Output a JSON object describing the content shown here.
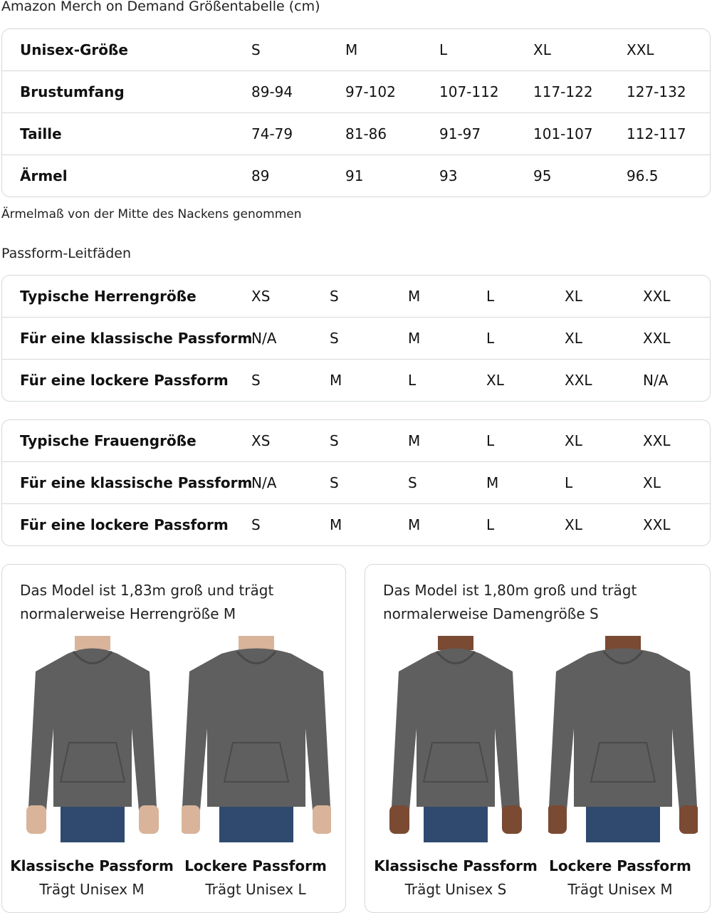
{
  "size_chart": {
    "title": "Amazon Merch on Demand Größentabelle (cm)",
    "rows": [
      {
        "label": "Unisex-Größe",
        "values": [
          "S",
          "M",
          "L",
          "XL",
          "XXL"
        ]
      },
      {
        "label": "Brustumfang",
        "values": [
          "89-94",
          "97-102",
          "107-112",
          "117-122",
          "127-132"
        ]
      },
      {
        "label": "Taille",
        "values": [
          "74-79",
          "81-86",
          "91-97",
          "101-107",
          "112-117"
        ]
      },
      {
        "label": "Ärmel",
        "values": [
          "89",
          "91",
          "93",
          "95",
          "96.5"
        ]
      }
    ],
    "note": "Ärmelmaß von der Mitte des Nackens genommen"
  },
  "fit_guides": {
    "title": "Passform-Leitfäden",
    "men": [
      {
        "label": "Typische Herrengröße",
        "values": [
          "XS",
          "S",
          "M",
          "L",
          "XL",
          "XXL"
        ]
      },
      {
        "label": "Für eine klassische Passform",
        "values": [
          "N/A",
          "S",
          "M",
          "L",
          "XL",
          "XXL"
        ]
      },
      {
        "label": "Für eine lockere Passform",
        "values": [
          "S",
          "M",
          "L",
          "XL",
          "XXL",
          "N/A"
        ]
      }
    ],
    "women": [
      {
        "label": "Typische Frauengröße",
        "values": [
          "XS",
          "S",
          "M",
          "L",
          "XL",
          "XXL"
        ]
      },
      {
        "label": "Für eine klassische Passform",
        "values": [
          "N/A",
          "S",
          "S",
          "M",
          "L",
          "XL"
        ]
      },
      {
        "label": "Für eine lockere Passform",
        "values": [
          "S",
          "M",
          "M",
          "L",
          "XL",
          "XXL"
        ]
      }
    ]
  },
  "models": [
    {
      "caption_line1": "Das Model ist 1,83m groß und trägt",
      "caption_line2": "normalerweise Herrengröße M",
      "fits": [
        {
          "fit": "Klassische Passform",
          "wears": "Trägt Unisex M"
        },
        {
          "fit": "Lockere Passform",
          "wears": "Trägt Unisex L"
        }
      ]
    },
    {
      "caption_line1": "Das Model ist 1,80m groß und trägt",
      "caption_line2": "normalerweise Damengröße S",
      "fits": [
        {
          "fit": "Klassische Passform",
          "wears": "Trägt Unisex S"
        },
        {
          "fit": "Lockere Passform",
          "wears": "Trägt Unisex M"
        }
      ]
    }
  ],
  "colors": {
    "border": "#d5d9d9",
    "hoodie": "#5f5f5f",
    "jeans": "#2f4a6e",
    "skin_light": "#d9b49a",
    "skin_dark": "#7a4a32"
  }
}
